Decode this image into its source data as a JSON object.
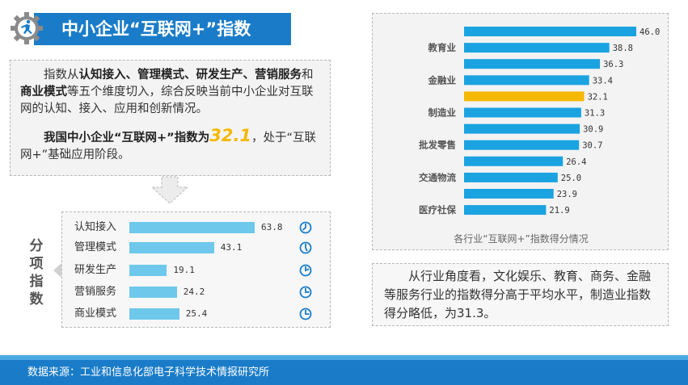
{
  "title": "中小企业“互联网+”指数",
  "description": {
    "intro_prefix": "指数从",
    "intro_dims_1": "认知接入、管理模式、研发生产、营销服务",
    "intro_and": "和",
    "intro_dims_2": "商业模式",
    "intro_suffix": "等五个维度切入，综合反映当前中小企业对互联网的认知、接入、应用和创新情况。",
    "highlight_prefix": "我国中小企业“互联网+”指数为",
    "highlight_value": "32.1",
    "highlight_suffix": "，处于“互联网+”基础应用阶段。"
  },
  "sub_indices": {
    "label": "分项指数",
    "items": [
      {
        "label": "认知接入",
        "value": "63.8"
      },
      {
        "label": "管理模式",
        "value": "43.1"
      },
      {
        "label": "研发生产",
        "value": "19.1"
      },
      {
        "label": "营销服务",
        "value": "24.2"
      },
      {
        "label": "商业模式",
        "value": "25.4"
      }
    ]
  },
  "chart_data": [
    {
      "type": "bar",
      "orientation": "horizontal",
      "categories": [
        "认知接入",
        "管理模式",
        "研发生产",
        "营销服务",
        "商业模式"
      ],
      "values": [
        63.8,
        43.1,
        19.1,
        24.2,
        25.4
      ],
      "xlim": [
        0,
        100
      ],
      "color": "#6ec8ec"
    },
    {
      "type": "bar",
      "orientation": "horizontal",
      "title": "各行业“互联网+”指数得分情况",
      "categories": [
        "",
        "教育业",
        "",
        "金融业",
        "",
        "制造业",
        "",
        "批发零售",
        "",
        "交通物流",
        "",
        "医疗社保"
      ],
      "values": [
        46.0,
        38.8,
        36.3,
        33.4,
        32.1,
        31.3,
        30.9,
        30.7,
        26.4,
        25.0,
        23.9,
        21.9
      ],
      "value_labels": [
        "46.0",
        "38.8",
        "36.3",
        "33.4",
        "32.1",
        "31.3",
        "30.9",
        "30.7",
        "26.4",
        "25.0",
        "23.9",
        "21.9"
      ],
      "highlight_index": 4,
      "bar_color": "#1aa3e0",
      "highlight_color": "#f5b800",
      "xlim": [
        0,
        46
      ]
    }
  ],
  "note": "从行业角度看，文化娱乐、教育、商务、金融等服务行业的指数得分高于平均水平，制造业指数得分略低，为31.3。",
  "footer": "数据来源：工业和信息化部电子科学技术情报研究所"
}
